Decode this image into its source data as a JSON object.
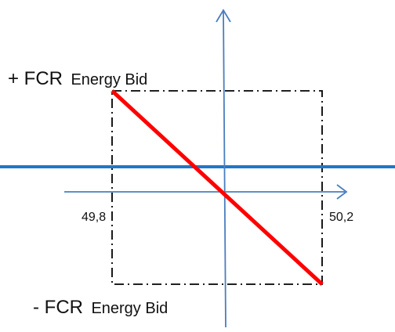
{
  "labels": {
    "top_sign": "+ FCR",
    "top_text": "Energy Bid",
    "bottom_sign": "- FCR",
    "bottom_text": "Energy Bid"
  },
  "ticks": {
    "left": "49,8",
    "right": "50,2"
  },
  "colors": {
    "axis": "#4a7ebf",
    "baseline": "#1f78c8",
    "droop_line": "#ff0000",
    "box": "#000000"
  }
}
